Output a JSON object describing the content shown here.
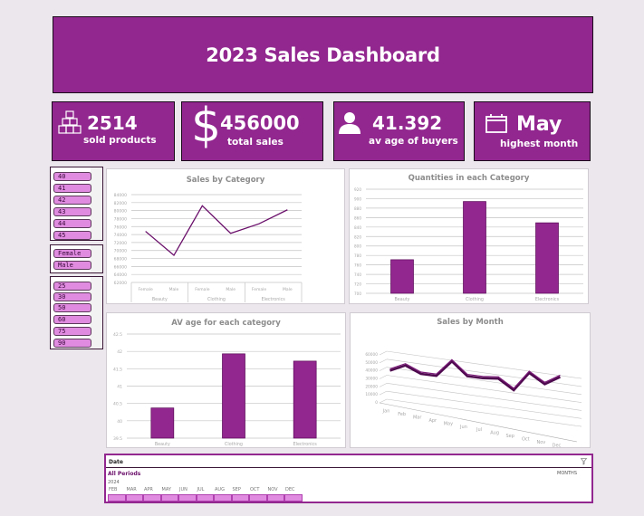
{
  "header": {
    "title": "2023 Sales Dashboard"
  },
  "kpis": [
    {
      "icon": "boxes-icon",
      "value": "2514",
      "label": "sold products"
    },
    {
      "icon": "dollar-icon",
      "value": "456000",
      "label": "total sales",
      "prefix": "$"
    },
    {
      "icon": "person-icon",
      "value": "41.392",
      "label": "av age of buyers"
    },
    {
      "icon": "calendar-icon",
      "value": "May",
      "label": "highest month"
    }
  ],
  "slicers": {
    "age": [
      "40",
      "41",
      "42",
      "43",
      "44",
      "45"
    ],
    "gender": [
      "Female",
      "Male"
    ],
    "quantity": [
      "25",
      "30",
      "50",
      "60",
      "75",
      "90"
    ]
  },
  "colors": {
    "accent": "#92278f",
    "chip": "#e08be0",
    "line": "#6a0f6a"
  },
  "chart_data": [
    {
      "type": "line",
      "title": "Sales by Category",
      "categories": [
        "Female",
        "Male",
        "Female",
        "Male",
        "Female",
        "Male"
      ],
      "groups": [
        "Beauty",
        "Clothing",
        "Electronics"
      ],
      "values": [
        74800,
        68800,
        81200,
        74300,
        76700,
        80200
      ],
      "yticks": [
        "84000",
        "82000",
        "80000",
        "78000",
        "76000",
        "74000",
        "72000",
        "70000",
        "68000",
        "66000",
        "64000",
        "62000"
      ],
      "ylim": [
        62000,
        84000
      ]
    },
    {
      "type": "bar",
      "title": "Quantities in each Category",
      "categories": [
        "Beauty",
        "Clothing",
        "Electronics"
      ],
      "values": [
        771,
        894,
        849
      ],
      "yticks": [
        "920",
        "900",
        "880",
        "860",
        "840",
        "820",
        "800",
        "780",
        "760",
        "740",
        "720",
        "700"
      ],
      "ylim": [
        700,
        920
      ]
    },
    {
      "type": "bar",
      "title": "AV age for each category",
      "categories": [
        "Beauty",
        "Clothing",
        "Electronics"
      ],
      "values": [
        40.37,
        41.93,
        41.72
      ],
      "yticks": [
        "42.5",
        "42",
        "41.5",
        "41",
        "40.5",
        "40",
        "39.5"
      ],
      "ylim": [
        39.5,
        42.5
      ]
    },
    {
      "type": "line",
      "title": "Sales by Month",
      "categories": [
        "Jan",
        "Feb",
        "Mar",
        "Apr",
        "May",
        "Jun",
        "Jul",
        "Aug",
        "Sep",
        "Oct",
        "Nov",
        "Dec"
      ],
      "values": [
        36000,
        44000,
        35000,
        34000,
        53500,
        36500,
        35500,
        36500,
        23500,
        46500,
        34000,
        44500
      ],
      "yticks": [
        "60000",
        "50000",
        "40000",
        "30000",
        "20000",
        "10000",
        "0"
      ],
      "ylim": [
        0,
        60000
      ]
    }
  ],
  "timeline": {
    "header": "Date",
    "periods_label": "All Periods",
    "level_label": "MONTHS",
    "year": "2024",
    "months": [
      "FEB",
      "MAR",
      "APR",
      "MAY",
      "JUN",
      "JUL",
      "AUG",
      "SEP",
      "OCT",
      "NOV",
      "DEC"
    ]
  }
}
